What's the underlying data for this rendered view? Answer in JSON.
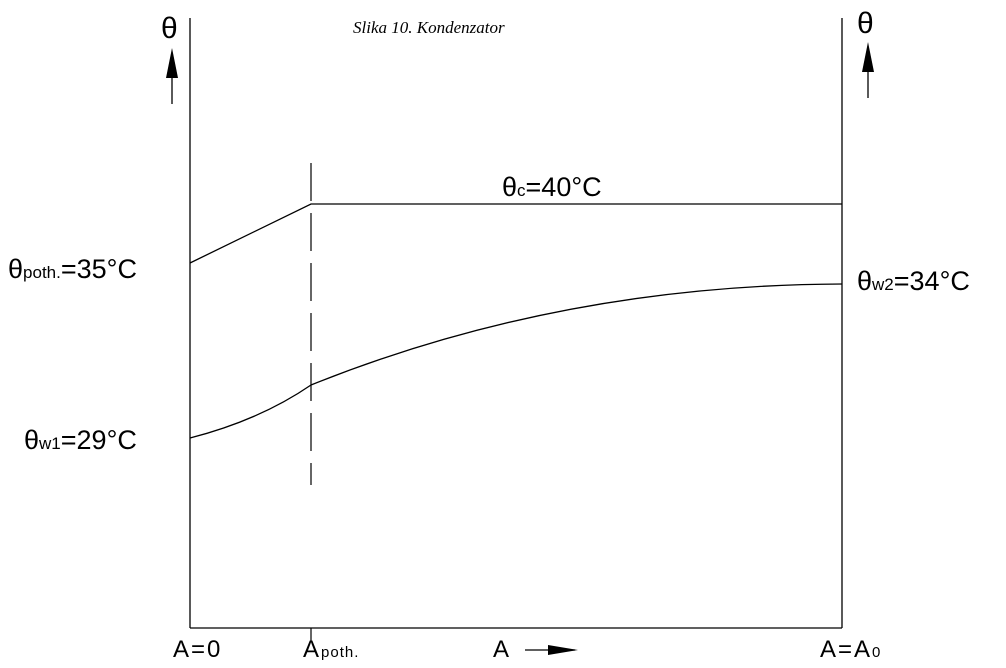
{
  "caption": "Slika 10. Kondenzator",
  "axis": {
    "y_symbol": "θ",
    "x_symbol": "A"
  },
  "labels": {
    "theta_c": {
      "base": "θ",
      "sub": "c",
      "rest": "=40°C"
    },
    "theta_poth": {
      "base": "θ",
      "sub": "poth.",
      "rest": "=35°C"
    },
    "theta_w1": {
      "base": "θ",
      "sub": "w1",
      "rest": "=29°C"
    },
    "theta_w2": {
      "base": "θ",
      "sub": "w2",
      "rest": "=34°C"
    }
  },
  "x_ticks": {
    "start": "A=0",
    "poth_base": "A",
    "poth_sub": "poth.",
    "end_base": "A=A",
    "end_sub": "0"
  },
  "chart_data": {
    "type": "line",
    "series": [
      {
        "points": [
          [
            "A=0",
            35
          ],
          [
            "Apoth.",
            40
          ],
          [
            "A=A0",
            40
          ]
        ]
      },
      {
        "points": [
          [
            "A=0",
            29
          ],
          [
            "Apoth.",
            31
          ],
          [
            "A=A0",
            34
          ]
        ]
      }
    ]
  },
  "colors": {
    "line": "#000000",
    "background": "#ffffff"
  }
}
